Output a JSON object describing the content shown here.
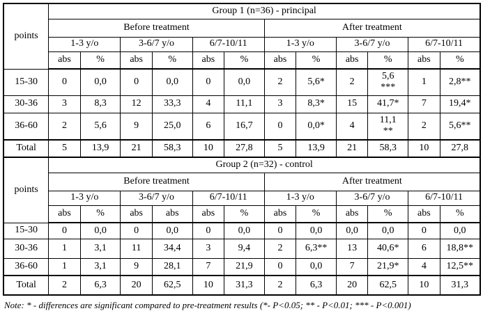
{
  "table": {
    "groups": [
      {
        "title": "Group 1 (n=36) - principal",
        "points_label": "points",
        "before_label": "Before treatment",
        "after_label": "After treatment",
        "age_labels": [
          "1-3 y/o",
          "3-6/7 y/o",
          "6/7-10/11",
          "1-3 y/o",
          "3-6/7 y/o",
          "6/7-10/11"
        ],
        "measure_labels": [
          "abs",
          "%",
          "abs",
          "%",
          "abs",
          "%",
          "abs",
          "%",
          "abs",
          "%",
          "abs",
          "%"
        ],
        "rows": [
          {
            "label": "15-30",
            "values": [
              "0",
              "0,0",
              "0",
              "0,0",
              "0",
              "0,0",
              "2",
              "5,6*",
              "2",
              "5,6\n***",
              "1",
              "2,8**"
            ]
          },
          {
            "label": "30-36",
            "values": [
              "3",
              "8,3",
              "12",
              "33,3",
              "4",
              "11,1",
              "3",
              "8,3*",
              "15",
              "41,7*",
              "7",
              "19,4*"
            ]
          },
          {
            "label": "36-60",
            "values": [
              "2",
              "5,6",
              "9",
              "25,0",
              "6",
              "16,7",
              "0",
              "0,0*",
              "4",
              "11,1\n**",
              "2",
              "5,6**"
            ]
          },
          {
            "label": "Total",
            "values": [
              "5",
              "13,9",
              "21",
              "58,3",
              "10",
              "27,8",
              "5",
              "13,9",
              "21",
              "58,3",
              "10",
              "27,8"
            ]
          }
        ]
      },
      {
        "title": "Group 2 (n=32) - control",
        "points_label": "points",
        "before_label": "Before treatment",
        "after_label": "After treatment",
        "age_labels": [
          "1-3 y/o",
          "3-6/7 y/o",
          "6/7-10/11",
          "1-3 y/o",
          "3-6/7 y/o",
          "6/7-10/11"
        ],
        "measure_labels": [
          "abs",
          "%",
          "abs",
          "abs",
          "abs",
          "%",
          "abs",
          "%",
          "abs",
          "%",
          "abs",
          "%"
        ],
        "rows": [
          {
            "label": "15-30",
            "values": [
              "0",
              "0,0",
              "0",
              "0,0",
              "0",
              "0,0",
              "0",
              "0,0",
              "0,0",
              "0,0",
              "0",
              "0,0"
            ]
          },
          {
            "label": "30-36",
            "values": [
              "1",
              "3,1",
              "11",
              "34,4",
              "3",
              "9,4",
              "2",
              "6,3**",
              "13",
              "40,6*",
              "6",
              "18,8**"
            ]
          },
          {
            "label": "36-60",
            "values": [
              "1",
              "3,1",
              "9",
              "28,1",
              "7",
              "21,9",
              "0",
              "0,0",
              "7",
              "21,9*",
              "4",
              "12,5**"
            ]
          },
          {
            "label": "Total",
            "values": [
              "2",
              "6,3",
              "20",
              "62,5",
              "10",
              "31,3",
              "2",
              "6,3",
              "20",
              "62,5",
              "10",
              "31,3"
            ]
          }
        ]
      }
    ]
  },
  "note": "Note: * - differences are significant compared to pre-treatment results (*- P<0.05; ** - P<0.01; *** - P<0.001)",
  "colors": {
    "border": "#000000",
    "text": "#000000",
    "background": "#ffffff"
  }
}
